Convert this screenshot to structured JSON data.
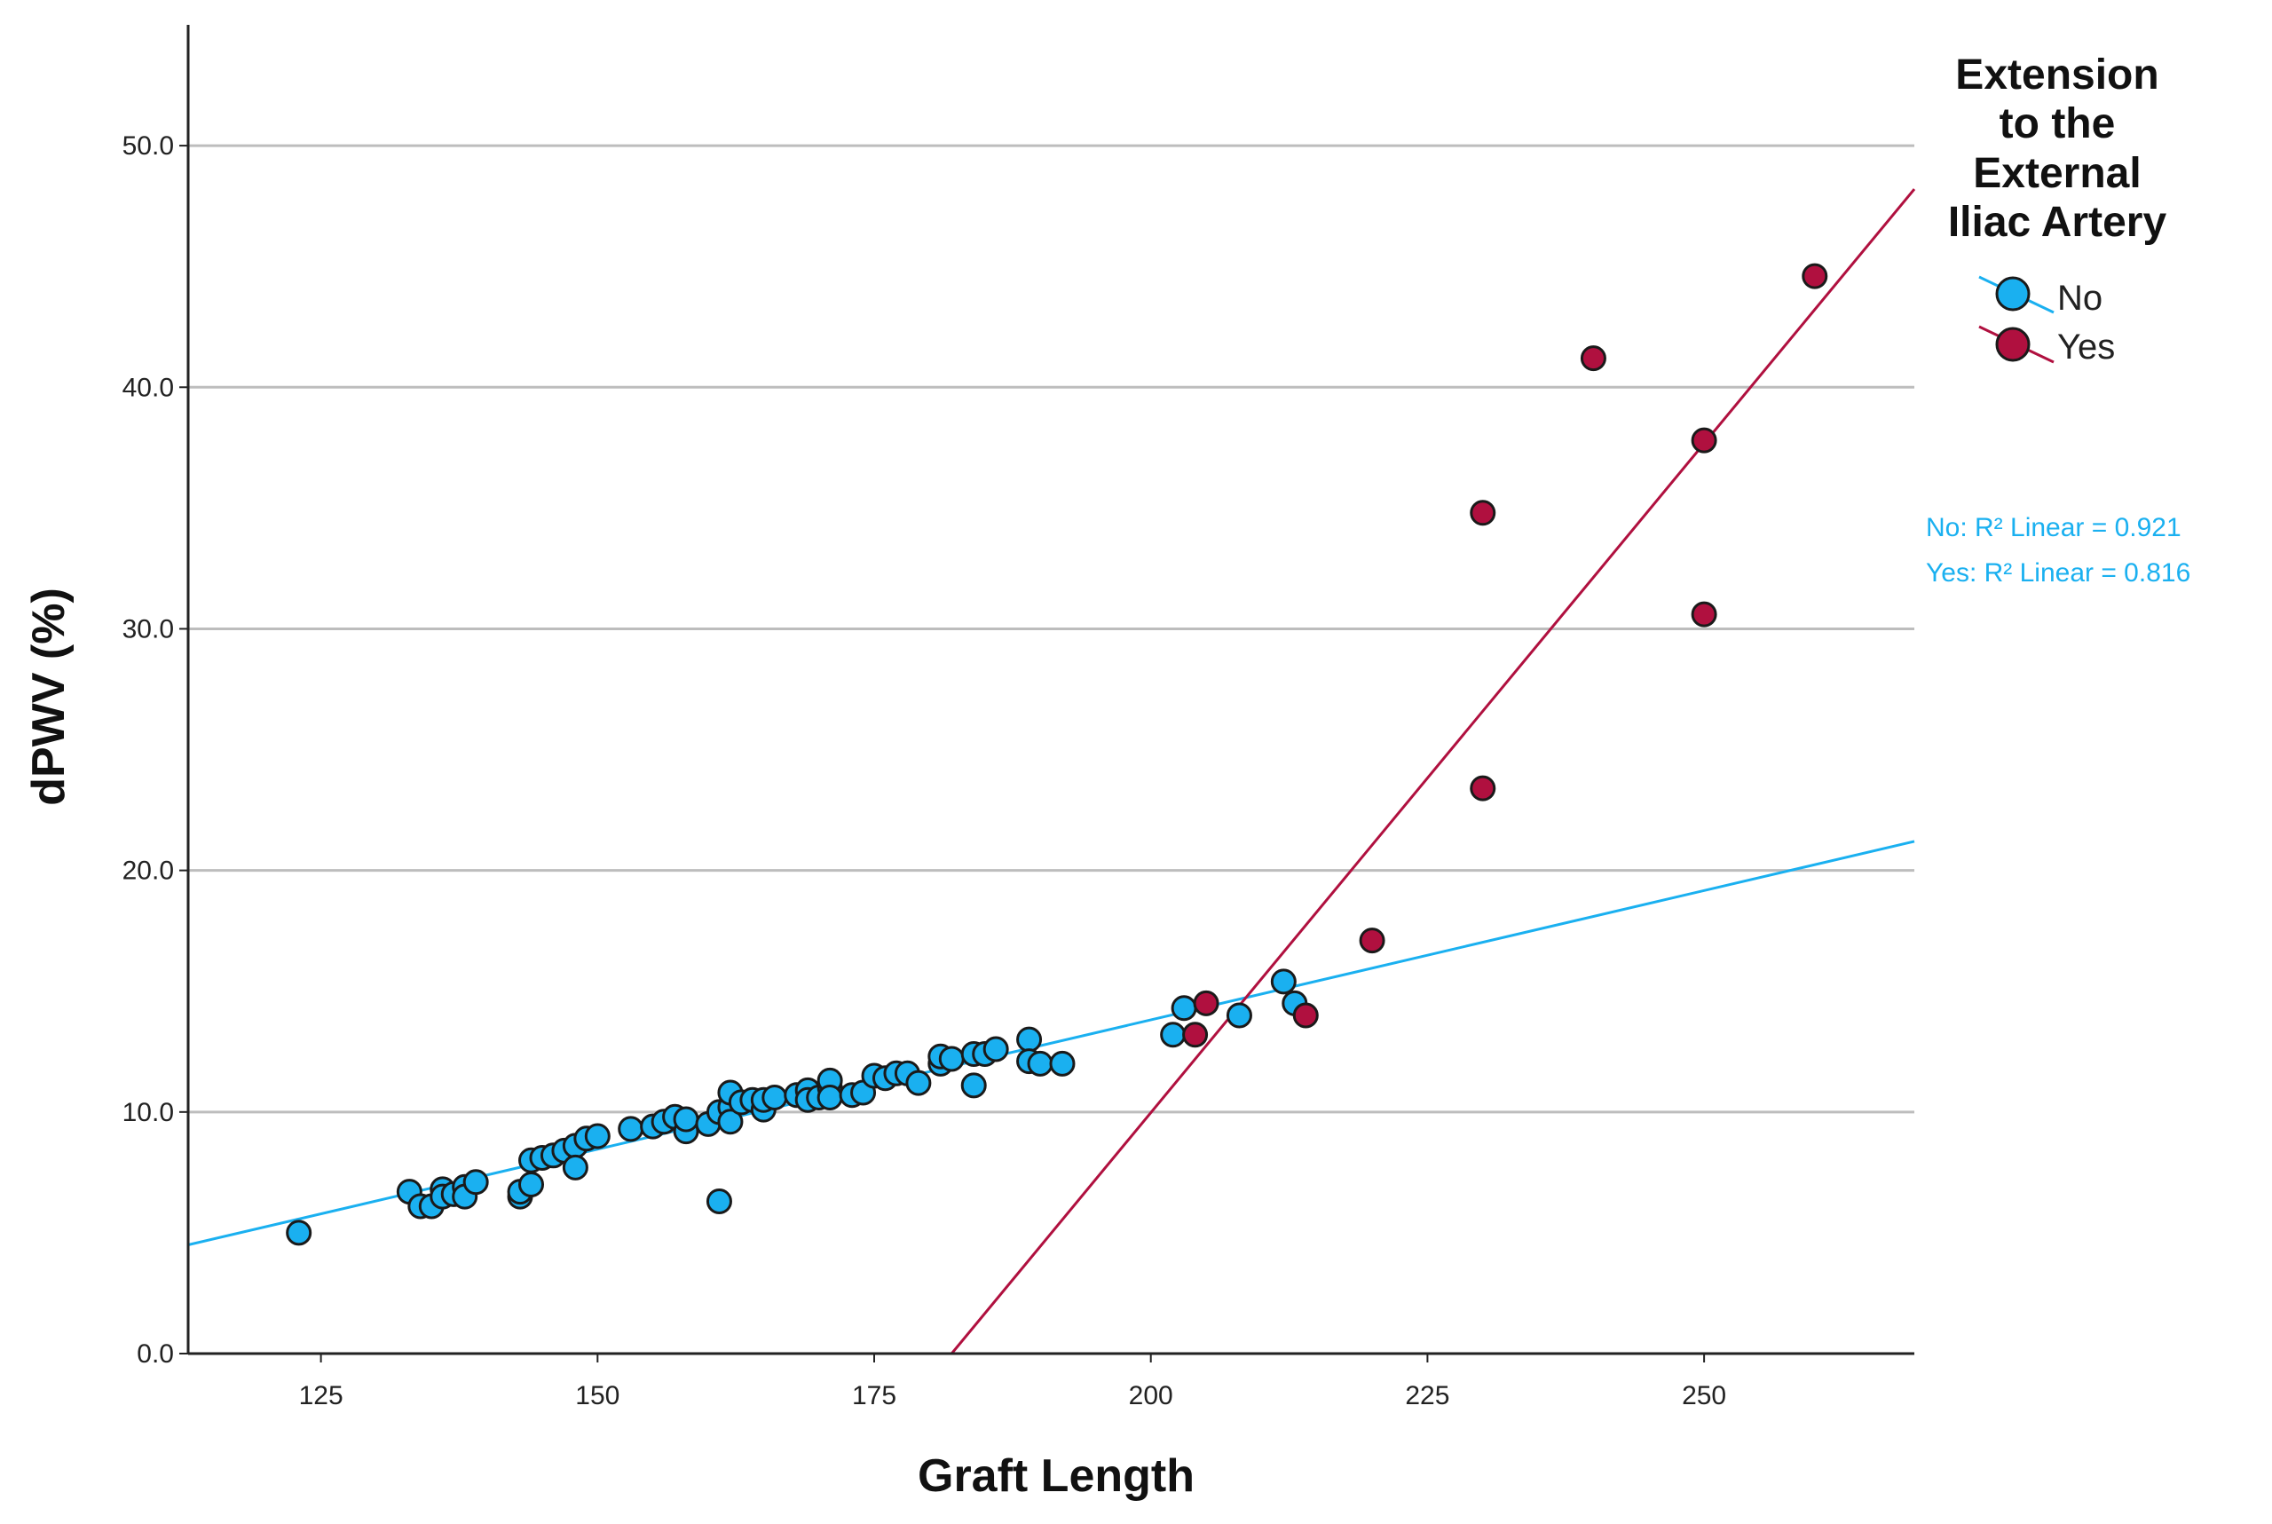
{
  "chart_data": {
    "type": "scatter",
    "xlabel": "Graft Length",
    "ylabel": "dPWV (%)",
    "xlim": [
      113,
      269
    ],
    "ylim": [
      0,
      55
    ],
    "x_ticks": [
      "125",
      "150",
      "175",
      "200",
      "225",
      "250"
    ],
    "x_tick_values": [
      125,
      150,
      175,
      200,
      225,
      250
    ],
    "y_ticks": [
      "0.0",
      "10.0",
      "20.0",
      "30.0",
      "40.0",
      "50.0"
    ],
    "y_tick_values": [
      0,
      10,
      20,
      30,
      40,
      50
    ],
    "grid": "horizontal",
    "legend": {
      "title_lines": [
        "Extension",
        "to the",
        "External",
        "Iliac Artery"
      ],
      "placement": "top-right"
    },
    "annotations": [
      "No: R² Linear = 0.921",
      "Yes: R² Linear = 0.816"
    ],
    "series": [
      {
        "name": "No",
        "color": "#1ab0f0",
        "fit": {
          "x": [
            113,
            269
          ],
          "y": [
            4.5,
            21.2
          ]
        },
        "points": [
          [
            123,
            5.0
          ],
          [
            133,
            6.7
          ],
          [
            134,
            6.1
          ],
          [
            135,
            6.1
          ],
          [
            136,
            6.8
          ],
          [
            136,
            6.5
          ],
          [
            137,
            6.6
          ],
          [
            138,
            6.9
          ],
          [
            138,
            6.5
          ],
          [
            139,
            7.1
          ],
          [
            143,
            6.5
          ],
          [
            143,
            6.7
          ],
          [
            144,
            7.0
          ],
          [
            144,
            8.0
          ],
          [
            145,
            8.1
          ],
          [
            146,
            8.2
          ],
          [
            147,
            8.4
          ],
          [
            148,
            8.6
          ],
          [
            148,
            7.7
          ],
          [
            149,
            8.9
          ],
          [
            150,
            9.0
          ],
          [
            153,
            9.3
          ],
          [
            155,
            9.4
          ],
          [
            156,
            9.6
          ],
          [
            157,
            9.8
          ],
          [
            158,
            9.2
          ],
          [
            158,
            9.7
          ],
          [
            160,
            9.5
          ],
          [
            161,
            10.0
          ],
          [
            161,
            6.3
          ],
          [
            162,
            10.2
          ],
          [
            162,
            10.8
          ],
          [
            162,
            9.6
          ],
          [
            163,
            10.4
          ],
          [
            164,
            10.5
          ],
          [
            165,
            10.1
          ],
          [
            165,
            10.5
          ],
          [
            166,
            10.6
          ],
          [
            168,
            10.7
          ],
          [
            169,
            10.9
          ],
          [
            169,
            10.5
          ],
          [
            170,
            10.6
          ],
          [
            171,
            11.0
          ],
          [
            171,
            11.3
          ],
          [
            171,
            10.6
          ],
          [
            173,
            10.7
          ],
          [
            174,
            10.8
          ],
          [
            175,
            11.5
          ],
          [
            176,
            11.4
          ],
          [
            177,
            11.6
          ],
          [
            178,
            11.6
          ],
          [
            179,
            11.2
          ],
          [
            181,
            12.0
          ],
          [
            181,
            12.3
          ],
          [
            182,
            12.2
          ],
          [
            184,
            12.4
          ],
          [
            184,
            11.1
          ],
          [
            185,
            12.4
          ],
          [
            186,
            12.6
          ],
          [
            189,
            13.0
          ],
          [
            189,
            12.1
          ],
          [
            190,
            12.0
          ],
          [
            192,
            12.0
          ],
          [
            202,
            13.2
          ],
          [
            203,
            14.3
          ],
          [
            208,
            14.0
          ],
          [
            212,
            15.4
          ],
          [
            213,
            14.5
          ]
        ]
      },
      {
        "name": "Yes",
        "color": "#b0103f",
        "fit": {
          "x": [
            182,
            269
          ],
          "y": [
            0,
            48.2
          ]
        },
        "points": [
          [
            204,
            13.2
          ],
          [
            205,
            14.5
          ],
          [
            214,
            14.0
          ],
          [
            220,
            17.1
          ],
          [
            230,
            34.8
          ],
          [
            230,
            23.4
          ],
          [
            240,
            41.2
          ],
          [
            250,
            37.8
          ],
          [
            250,
            30.6
          ],
          [
            260,
            44.6
          ]
        ]
      }
    ]
  }
}
